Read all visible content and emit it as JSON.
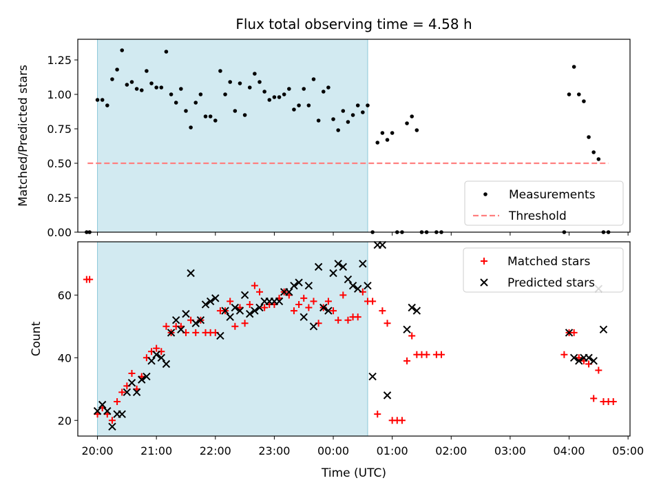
{
  "figure": {
    "title": "Flux total observing time = 4.58 h"
  },
  "chart_data": [
    {
      "type": "scatter",
      "ylabel": "Matched/Predicted stars",
      "xlabel": "",
      "ylim": [
        0,
        1.4
      ],
      "xlim": [
        "19:40",
        "05:02"
      ],
      "yticks": [
        0,
        0.25,
        0.5,
        0.75,
        1.0,
        1.25
      ],
      "ytick_labels": [
        "0.00",
        "0.25",
        "0.50",
        "0.75",
        "1.00",
        "1.25"
      ],
      "shaded_interval": {
        "x": [
          "20:00",
          "00:35"
        ],
        "color": "#add8e6"
      },
      "legend_position": "lower-right",
      "legend": [
        "Measurements",
        "Threshold"
      ],
      "series": [
        {
          "name": "Measurements",
          "marker": "dot",
          "color": "#000000",
          "points": [
            [
              "19:49",
              0.0
            ],
            [
              "19:52",
              0.0
            ],
            [
              "20:00",
              0.96
            ],
            [
              "20:05",
              0.96
            ],
            [
              "20:10",
              0.92
            ],
            [
              "20:15",
              1.11
            ],
            [
              "20:20",
              1.18
            ],
            [
              "20:25",
              1.32
            ],
            [
              "20:30",
              1.07
            ],
            [
              "20:35",
              1.09
            ],
            [
              "20:40",
              1.04
            ],
            [
              "20:45",
              1.03
            ],
            [
              "20:50",
              1.17
            ],
            [
              "20:55",
              1.08
            ],
            [
              "21:00",
              1.05
            ],
            [
              "21:05",
              1.05
            ],
            [
              "21:10",
              1.31
            ],
            [
              "21:15",
              1.0
            ],
            [
              "21:20",
              0.94
            ],
            [
              "21:25",
              1.04
            ],
            [
              "21:30",
              0.88
            ],
            [
              "21:35",
              0.76
            ],
            [
              "21:40",
              0.94
            ],
            [
              "21:45",
              1.0
            ],
            [
              "21:50",
              0.84
            ],
            [
              "21:55",
              0.84
            ],
            [
              "22:00",
              0.81
            ],
            [
              "22:05",
              1.17
            ],
            [
              "22:10",
              1.0
            ],
            [
              "22:15",
              1.09
            ],
            [
              "22:20",
              0.88
            ],
            [
              "22:25",
              1.08
            ],
            [
              "22:30",
              0.85
            ],
            [
              "22:35",
              1.05
            ],
            [
              "22:40",
              1.15
            ],
            [
              "22:45",
              1.09
            ],
            [
              "22:50",
              1.02
            ],
            [
              "22:55",
              0.96
            ],
            [
              "23:00",
              0.98
            ],
            [
              "23:05",
              0.98
            ],
            [
              "23:10",
              1.0
            ],
            [
              "23:15",
              1.04
            ],
            [
              "23:20",
              0.89
            ],
            [
              "23:25",
              0.92
            ],
            [
              "23:30",
              1.04
            ],
            [
              "23:35",
              0.92
            ],
            [
              "23:40",
              1.11
            ],
            [
              "23:45",
              0.81
            ],
            [
              "23:50",
              1.02
            ],
            [
              "23:55",
              1.05
            ],
            [
              "00:00",
              0.82
            ],
            [
              "00:05",
              0.74
            ],
            [
              "00:10",
              0.88
            ],
            [
              "00:15",
              0.8
            ],
            [
              "00:20",
              0.85
            ],
            [
              "00:25",
              0.92
            ],
            [
              "00:30",
              0.87
            ],
            [
              "00:35",
              0.92
            ],
            [
              "00:40",
              0.0
            ],
            [
              "00:45",
              0.65
            ],
            [
              "00:50",
              0.72
            ],
            [
              "00:55",
              0.67
            ],
            [
              "01:00",
              0.72
            ],
            [
              "01:05",
              0.0
            ],
            [
              "01:10",
              0.0
            ],
            [
              "01:15",
              0.79
            ],
            [
              "01:20",
              0.84
            ],
            [
              "01:25",
              0.74
            ],
            [
              "01:30",
              0.0
            ],
            [
              "01:35",
              0.0
            ],
            [
              "01:45",
              0.0
            ],
            [
              "01:50",
              0.0
            ],
            [
              "03:55",
              0.0
            ],
            [
              "04:00",
              1.0
            ],
            [
              "04:05",
              1.2
            ],
            [
              "04:10",
              1.0
            ],
            [
              "04:15",
              0.95
            ],
            [
              "04:20",
              0.69
            ],
            [
              "04:25",
              0.58
            ],
            [
              "04:30",
              0.53
            ],
            [
              "04:35",
              0.0
            ],
            [
              "04:40",
              0.0
            ]
          ]
        },
        {
          "name": "Threshold",
          "style": "dashed",
          "color": "#ff7f7f",
          "points": [
            [
              "19:50",
              0.5
            ],
            [
              "04:40",
              0.5
            ]
          ]
        }
      ]
    },
    {
      "type": "scatter",
      "xlabel": "Time (UTC)",
      "ylabel": "Count",
      "ylim": [
        15,
        77
      ],
      "xlim": [
        "19:40",
        "05:02"
      ],
      "yticks": [
        20,
        40,
        60
      ],
      "ytick_labels": [
        "20",
        "40",
        "60"
      ],
      "xticks": [
        "20:00",
        "21:00",
        "22:00",
        "23:00",
        "00:00",
        "01:00",
        "02:00",
        "03:00",
        "04:00",
        "05:00"
      ],
      "shaded_interval": {
        "x": [
          "20:00",
          "00:35"
        ],
        "color": "#add8e6"
      },
      "legend_position": "upper-right",
      "legend": [
        "Matched stars",
        "Predicted stars"
      ],
      "series": [
        {
          "name": "Matched stars",
          "marker": "plus",
          "color": "#ff0000",
          "points": [
            [
              "19:49",
              65
            ],
            [
              "19:52",
              65
            ],
            [
              "20:00",
              22
            ],
            [
              "20:05",
              24
            ],
            [
              "20:10",
              22
            ],
            [
              "20:15",
              20
            ],
            [
              "20:20",
              26
            ],
            [
              "20:25",
              29
            ],
            [
              "20:30",
              31
            ],
            [
              "20:35",
              35
            ],
            [
              "20:40",
              30
            ],
            [
              "20:45",
              34
            ],
            [
              "20:50",
              40
            ],
            [
              "20:55",
              42
            ],
            [
              "21:00",
              43
            ],
            [
              "21:05",
              42
            ],
            [
              "21:10",
              50
            ],
            [
              "21:15",
              48
            ],
            [
              "21:20",
              50
            ],
            [
              "21:25",
              50
            ],
            [
              "21:30",
              48
            ],
            [
              "21:35",
              52
            ],
            [
              "21:40",
              48
            ],
            [
              "21:45",
              52
            ],
            [
              "21:50",
              48
            ],
            [
              "21:55",
              48
            ],
            [
              "22:00",
              48
            ],
            [
              "22:05",
              55
            ],
            [
              "22:10",
              55
            ],
            [
              "22:15",
              58
            ],
            [
              "22:20",
              50
            ],
            [
              "22:25",
              56
            ],
            [
              "22:30",
              51
            ],
            [
              "22:35",
              57
            ],
            [
              "22:40",
              63
            ],
            [
              "22:45",
              61
            ],
            [
              "22:50",
              56
            ],
            [
              "22:55",
              57
            ],
            [
              "23:00",
              57
            ],
            [
              "23:05",
              59
            ],
            [
              "23:10",
              61
            ],
            [
              "23:15",
              60
            ],
            [
              "23:20",
              55
            ],
            [
              "23:25",
              57
            ],
            [
              "23:30",
              59
            ],
            [
              "23:35",
              56
            ],
            [
              "23:40",
              58
            ],
            [
              "23:45",
              51
            ],
            [
              "23:50",
              56
            ],
            [
              "23:55",
              58
            ],
            [
              "00:00",
              55
            ],
            [
              "00:05",
              52
            ],
            [
              "00:10",
              60
            ],
            [
              "00:15",
              52
            ],
            [
              "00:20",
              53
            ],
            [
              "00:25",
              53
            ],
            [
              "00:30",
              61
            ],
            [
              "00:35",
              58
            ],
            [
              "00:40",
              58
            ],
            [
              "00:45",
              22
            ],
            [
              "00:50",
              55
            ],
            [
              "00:55",
              51
            ],
            [
              "01:00",
              20
            ],
            [
              "01:05",
              20
            ],
            [
              "01:10",
              20
            ],
            [
              "01:15",
              39
            ],
            [
              "01:20",
              47
            ],
            [
              "01:25",
              41
            ],
            [
              "01:30",
              41
            ],
            [
              "01:35",
              41
            ],
            [
              "01:45",
              41
            ],
            [
              "01:50",
              41
            ],
            [
              "03:55",
              41
            ],
            [
              "04:00",
              48
            ],
            [
              "04:05",
              48
            ],
            [
              "04:10",
              40
            ],
            [
              "04:15",
              39
            ],
            [
              "04:20",
              38
            ],
            [
              "04:25",
              27
            ],
            [
              "04:30",
              36
            ],
            [
              "04:35",
              26
            ],
            [
              "04:40",
              26
            ],
            [
              "04:45",
              26
            ]
          ]
        },
        {
          "name": "Predicted stars",
          "marker": "x",
          "color": "#000000",
          "points": [
            [
              "20:00",
              23
            ],
            [
              "20:05",
              25
            ],
            [
              "20:10",
              23
            ],
            [
              "20:15",
              18
            ],
            [
              "20:20",
              22
            ],
            [
              "20:25",
              22
            ],
            [
              "20:30",
              29
            ],
            [
              "20:35",
              32
            ],
            [
              "20:40",
              29
            ],
            [
              "20:45",
              33
            ],
            [
              "20:50",
              34
            ],
            [
              "20:55",
              39
            ],
            [
              "21:00",
              41
            ],
            [
              "21:05",
              40
            ],
            [
              "21:10",
              38
            ],
            [
              "21:15",
              48
            ],
            [
              "21:20",
              52
            ],
            [
              "21:25",
              49
            ],
            [
              "21:30",
              54
            ],
            [
              "21:35",
              67
            ],
            [
              "21:40",
              51
            ],
            [
              "21:45",
              52
            ],
            [
              "21:50",
              57
            ],
            [
              "21:55",
              58
            ],
            [
              "22:00",
              59
            ],
            [
              "22:05",
              47
            ],
            [
              "22:10",
              55
            ],
            [
              "22:15",
              53
            ],
            [
              "22:20",
              56
            ],
            [
              "22:25",
              55
            ],
            [
              "22:30",
              60
            ],
            [
              "22:35",
              54
            ],
            [
              "22:40",
              55
            ],
            [
              "22:45",
              56
            ],
            [
              "22:50",
              58
            ],
            [
              "22:55",
              58
            ],
            [
              "23:00",
              58
            ],
            [
              "23:05",
              58
            ],
            [
              "23:10",
              61
            ],
            [
              "23:15",
              61
            ],
            [
              "23:20",
              63
            ],
            [
              "23:25",
              64
            ],
            [
              "23:30",
              53
            ],
            [
              "23:35",
              63
            ],
            [
              "23:40",
              50
            ],
            [
              "23:45",
              69
            ],
            [
              "23:50",
              56
            ],
            [
              "23:55",
              55
            ],
            [
              "00:00",
              67
            ],
            [
              "00:05",
              70
            ],
            [
              "00:10",
              69
            ],
            [
              "00:15",
              65
            ],
            [
              "00:20",
              63
            ],
            [
              "00:25",
              62
            ],
            [
              "00:30",
              70
            ],
            [
              "00:35",
              63
            ],
            [
              "00:40",
              34
            ],
            [
              "00:45",
              76
            ],
            [
              "00:50",
              76
            ],
            [
              "00:55",
              28
            ],
            [
              "01:15",
              49
            ],
            [
              "01:20",
              56
            ],
            [
              "01:25",
              55
            ],
            [
              "04:00",
              48
            ],
            [
              "04:05",
              40
            ],
            [
              "04:10",
              39
            ],
            [
              "04:15",
              40
            ],
            [
              "04:20",
              40
            ],
            [
              "04:25",
              39
            ],
            [
              "04:30",
              62
            ],
            [
              "04:35",
              49
            ]
          ]
        }
      ]
    }
  ]
}
